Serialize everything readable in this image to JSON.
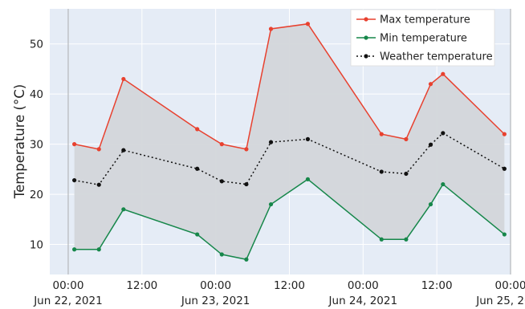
{
  "chart_data": {
    "type": "line",
    "title": "",
    "xlabel": "",
    "ylabel": "Temperature (°C)",
    "x": [
      "2021-06-22 01:00",
      "2021-06-22 05:00",
      "2021-06-22 09:00",
      "2021-06-22 21:00",
      "2021-06-23 01:00",
      "2021-06-23 05:00",
      "2021-06-23 09:00",
      "2021-06-23 15:00",
      "2021-06-24 03:00",
      "2021-06-24 07:00",
      "2021-06-24 11:00",
      "2021-06-24 13:00",
      "2021-06-24 23:00"
    ],
    "series": [
      {
        "name": "Max temperature",
        "color": "#e8412f",
        "style": "solid",
        "values": [
          30,
          29,
          43,
          33,
          30,
          29,
          53,
          54,
          32,
          31,
          42,
          44,
          32
        ]
      },
      {
        "name": "Min temperature",
        "color": "#16874a",
        "style": "solid",
        "values": [
          9,
          9,
          17,
          12,
          8,
          7,
          18,
          23,
          11,
          11,
          18,
          22,
          12
        ]
      },
      {
        "name": "Weather temperature",
        "color": "#111111",
        "style": "dotted",
        "values": [
          22.8,
          21.9,
          28.8,
          25.1,
          22.6,
          22.0,
          30.4,
          31.0,
          24.5,
          24.1,
          29.9,
          32.2,
          25.1
        ]
      }
    ],
    "fill_between": {
      "upper": "Max temperature",
      "lower": "Min temperature",
      "color": "#d3d6da"
    },
    "xlim": [
      "2021-06-21 21:00",
      "2021-06-25 00:00"
    ],
    "ylim": [
      4,
      57
    ],
    "x_ticks": [
      {
        "x": "2021-06-22 00:00",
        "label": [
          "00:00",
          "Jun 22, 2021"
        ]
      },
      {
        "x": "2021-06-22 12:00",
        "label": [
          "12:00",
          ""
        ]
      },
      {
        "x": "2021-06-23 00:00",
        "label": [
          "00:00",
          "Jun 23, 2021"
        ]
      },
      {
        "x": "2021-06-23 12:00",
        "label": [
          "12:00",
          ""
        ]
      },
      {
        "x": "2021-06-24 00:00",
        "label": [
          "00:00",
          "Jun 24, 2021"
        ]
      },
      {
        "x": "2021-06-24 12:00",
        "label": [
          "12:00",
          ""
        ]
      },
      {
        "x": "2021-06-25 00:00",
        "label": [
          "00:00",
          "Jun 25, 2021"
        ]
      }
    ],
    "y_ticks": [
      10,
      20,
      30,
      40,
      50
    ],
    "grid": true,
    "legend": "top-right",
    "background": "#e5ecf6"
  }
}
